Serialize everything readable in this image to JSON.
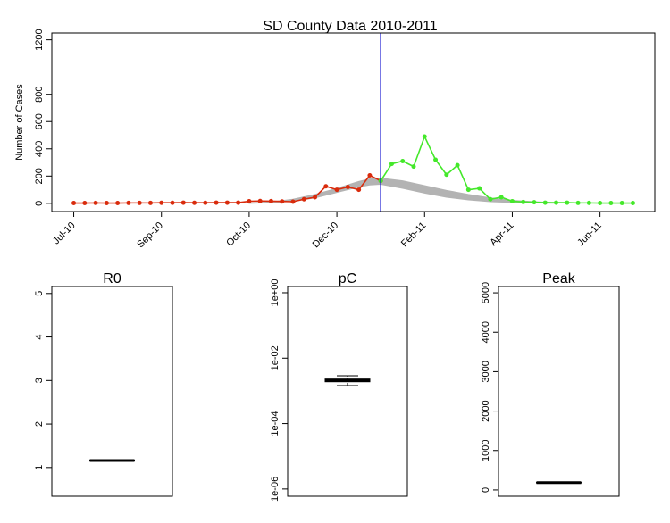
{
  "chart_data": [
    {
      "type": "line",
      "title": "SD County Data 2010-2011",
      "ylabel": "Number of Cases",
      "xlim": [
        -2,
        53
      ],
      "ylim": [
        -60,
        1250
      ],
      "xticks": [
        {
          "value": 0,
          "label": "Jul-10"
        },
        {
          "value": 8,
          "label": "Sep-10"
        },
        {
          "value": 16,
          "label": "Oct-10"
        },
        {
          "value": 24,
          "label": "Dec-10"
        },
        {
          "value": 32,
          "label": "Feb-11"
        },
        {
          "value": 40,
          "label": "Apr-11"
        },
        {
          "value": 48,
          "label": "Jun-11"
        }
      ],
      "yticks": [
        0,
        200,
        400,
        600,
        800,
        1200
      ],
      "vline": 28,
      "vline_color": "#1010d0",
      "band": {
        "color": "#b3b3b3",
        "x": [
          16,
          18,
          20,
          22,
          24,
          26,
          27,
          28,
          30,
          32,
          34,
          36,
          38,
          40,
          42,
          44
        ],
        "lower": [
          0,
          5,
          15,
          40,
          80,
          120,
          135,
          140,
          110,
          75,
          45,
          25,
          12,
          6,
          3,
          1
        ],
        "upper": [
          2,
          10,
          30,
          65,
          110,
          160,
          180,
          185,
          165,
          130,
          95,
          65,
          40,
          22,
          12,
          5
        ]
      },
      "series": [
        {
          "color": "#d92b0c",
          "x": [
            0,
            1,
            2,
            3,
            4,
            5,
            6,
            7,
            8,
            9,
            10,
            11,
            12,
            13,
            14,
            15,
            16,
            17,
            18,
            19,
            20,
            21,
            22,
            23,
            24,
            25,
            26,
            27,
            28
          ],
          "values": [
            2,
            2,
            3,
            2,
            2,
            3,
            3,
            3,
            4,
            4,
            5,
            4,
            4,
            5,
            5,
            5,
            15,
            17,
            16,
            14,
            12,
            30,
            45,
            125,
            100,
            120,
            100,
            205,
            165
          ]
        },
        {
          "color": "#44e82a",
          "x": [
            28,
            29,
            30,
            31,
            32,
            33,
            34,
            35,
            36,
            37,
            38,
            39,
            40,
            41,
            42,
            43,
            44,
            45,
            46,
            47,
            48,
            49,
            50,
            51
          ],
          "values": [
            165,
            290,
            310,
            270,
            490,
            320,
            210,
            280,
            100,
            110,
            30,
            45,
            15,
            10,
            8,
            5,
            5,
            5,
            3,
            3,
            2,
            2,
            2,
            2
          ]
        }
      ]
    },
    {
      "type": "box",
      "title": "R0",
      "ylim": [
        0.34,
        5.16
      ],
      "yticks": [
        1,
        2,
        3,
        4,
        5
      ],
      "box": {
        "whisker_low": 1.14,
        "q1": 1.15,
        "median": 1.16,
        "q3": 1.17,
        "whisker_high": 1.18
      }
    },
    {
      "type": "box",
      "title": "pC",
      "log": true,
      "ylim": [
        6e-07,
        1.55
      ],
      "yticks": [
        {
          "value": 1,
          "label": "1e+00"
        },
        {
          "value": 0.01,
          "label": "1e-02"
        },
        {
          "value": 0.0001,
          "label": "1e-04"
        },
        {
          "value": 1e-06,
          "label": "1e-06"
        }
      ],
      "box": {
        "whisker_low": 0.00145,
        "q1": 0.0019,
        "median": 0.0021,
        "q3": 0.0023,
        "whisker_high": 0.0029
      }
    },
    {
      "type": "box",
      "title": "Peak",
      "ylim": [
        -160,
        5160
      ],
      "yticks": [
        0,
        1000,
        2000,
        3000,
        4000,
        5000
      ],
      "box": {
        "whisker_low": 175,
        "q1": 180,
        "median": 185,
        "q3": 190,
        "whisker_high": 195
      }
    }
  ]
}
